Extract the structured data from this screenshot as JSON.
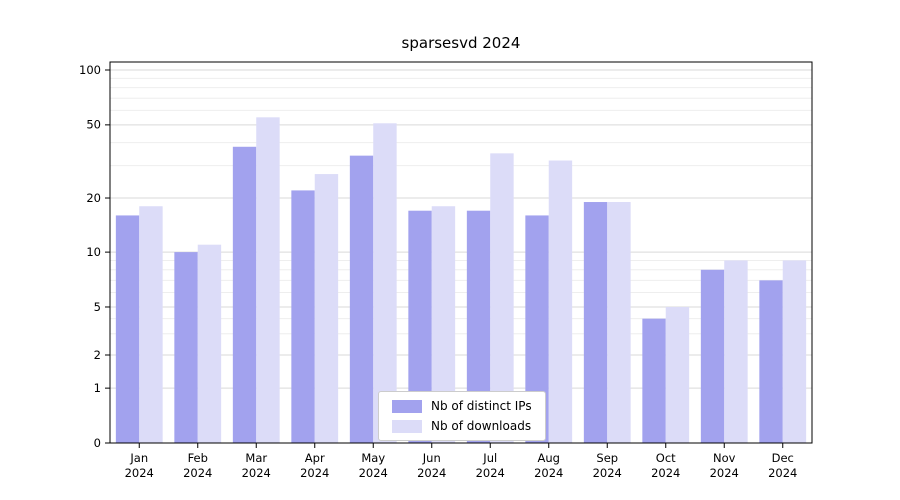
{
  "title": "sparsesvd 2024",
  "chart_data": {
    "type": "bar",
    "title": "sparsesvd 2024",
    "x_months": [
      "Jan",
      "Feb",
      "Mar",
      "Apr",
      "May",
      "Jun",
      "Jul",
      "Aug",
      "Sep",
      "Oct",
      "Nov",
      "Dec"
    ],
    "x_year": "2024",
    "series": [
      {
        "name": "Nb of distinct IPs",
        "color": "#a2a2ee",
        "values": [
          16,
          10,
          38,
          22,
          34,
          17,
          17,
          16,
          19,
          4,
          8,
          7
        ]
      },
      {
        "name": "Nb of downloads",
        "color": "#dcdcf8",
        "values": [
          18,
          11,
          55,
          27,
          51,
          18,
          35,
          32,
          19,
          5,
          9,
          9
        ]
      }
    ],
    "y_ticks": [
      0,
      1,
      2,
      5,
      10,
      20,
      50,
      100
    ],
    "y_minor_ticks": [
      3,
      4,
      6,
      7,
      8,
      9,
      30,
      40,
      60,
      70,
      80,
      90
    ],
    "y_scale": "symlog",
    "ylim": [
      0,
      115
    ],
    "grid": true,
    "legend_position": "lower center"
  }
}
